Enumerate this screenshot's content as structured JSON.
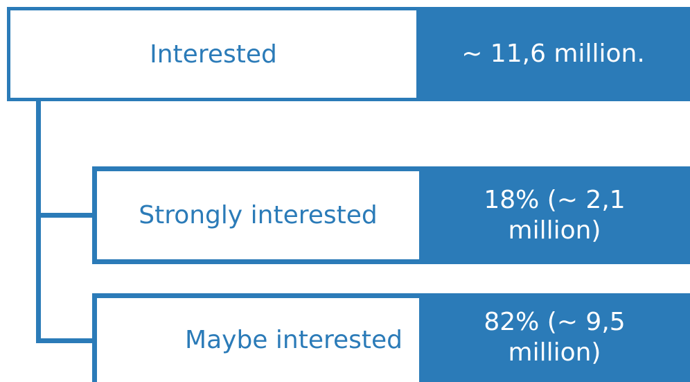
{
  "nodes": [
    {
      "label": "Interested",
      "value_lines": [
        "~ 11,6 million."
      ]
    },
    {
      "label": "Strongly interested",
      "value_lines": [
        "18% (~ 2,1",
        "million)"
      ]
    },
    {
      "label": "Maybe interested",
      "value_lines": [
        "82% (~ 9,5",
        "million)"
      ]
    }
  ]
}
